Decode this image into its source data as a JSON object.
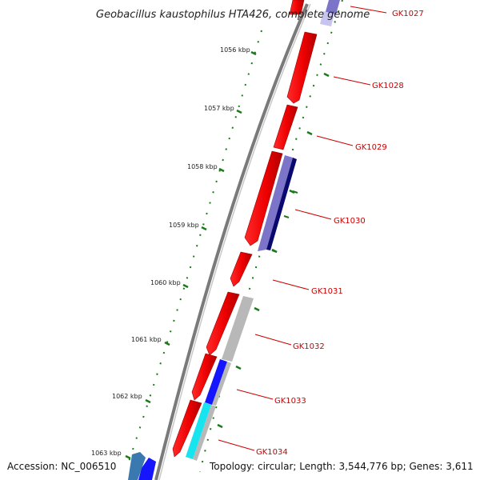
{
  "title": "Geobacillus kaustophilus HTA426, complete genome",
  "footer": {
    "accession": "Accession: NC_006510",
    "topology": "Topology: circular; Length: 3,544,776 bp; Genes: 3,611"
  },
  "kbp_ticks": [
    "1056 kbp",
    "1057 kbp",
    "1058 kbp",
    "1059 kbp",
    "1060 kbp",
    "1061 kbp",
    "1062 kbp",
    "1063 kbp"
  ],
  "gene_labels": [
    "GK1027",
    "GK1028",
    "GK1029",
    "GK1030",
    "GK1031",
    "GK1032",
    "GK1033",
    "GK1034"
  ],
  "colors": {
    "backbone": "#7a7a7a",
    "forward_cds": "#ff0000",
    "lavender_cds": "#7b74c9",
    "navy_cds": "#0a0a6e",
    "grey_cds": "#b8b8b8",
    "blue_cds": "#1515ff",
    "cyan_cds": "#18e4ef",
    "steel_cds": "#3a78b0",
    "tick_green": "#1a7a1a",
    "label_red": "#cc0000"
  }
}
